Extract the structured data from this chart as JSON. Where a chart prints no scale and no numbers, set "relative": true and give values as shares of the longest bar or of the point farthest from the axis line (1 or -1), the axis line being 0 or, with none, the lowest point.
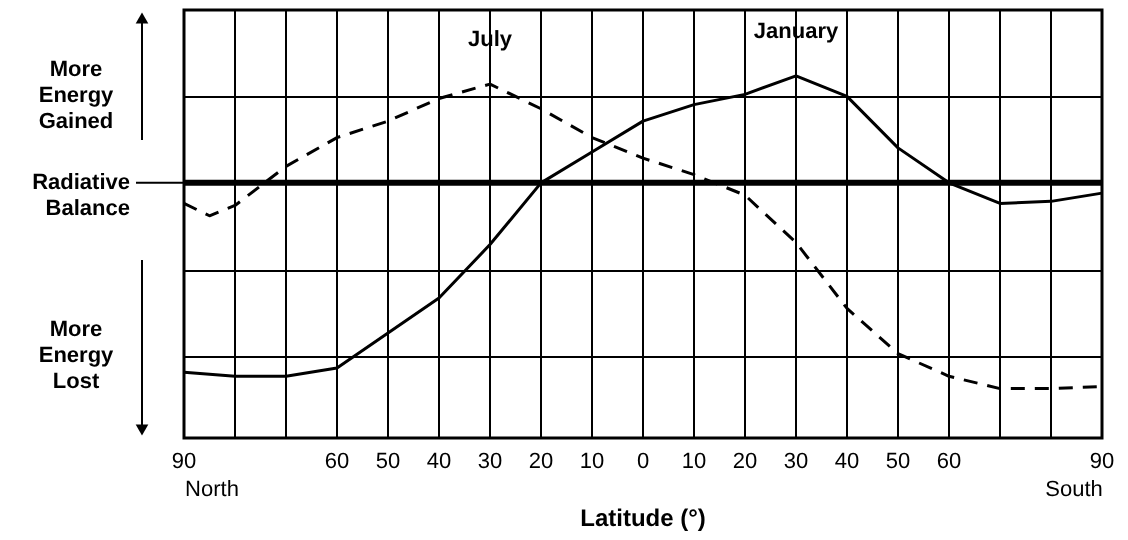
{
  "chart_data": {
    "type": "line",
    "relative": true,
    "xlabel": "Latitude (°)",
    "xlim": [
      90,
      -90
    ],
    "xticks": [
      90,
      {
        "value": 80,
        "label": null
      },
      {
        "value": 70,
        "label": null
      },
      60,
      50,
      40,
      30,
      20,
      10,
      0,
      {
        "value": -10,
        "label": "10"
      },
      {
        "value": -20,
        "label": "20"
      },
      {
        "value": -30,
        "label": "30"
      },
      {
        "value": -40,
        "label": "40"
      },
      {
        "value": -50,
        "label": "50"
      },
      {
        "value": -60,
        "label": "60"
      },
      {
        "value": -70,
        "label": null
      },
      {
        "value": -80,
        "label": null
      },
      {
        "value": -90,
        "label": "90"
      }
    ],
    "grid": true,
    "marker": "none",
    "series": [
      {
        "name": "January",
        "color": "#000000",
        "line_style": "solid",
        "x": [
          90,
          80,
          70,
          60,
          50,
          40,
          30,
          20,
          10,
          0,
          -10,
          -20,
          -30,
          -40,
          -50,
          -60,
          -70,
          -80,
          -90
        ],
        "values": [
          -0.92,
          -0.94,
          -0.94,
          -0.9,
          -0.73,
          -0.56,
          -0.3,
          0.0,
          0.15,
          0.3,
          0.38,
          0.43,
          0.52,
          0.42,
          0.17,
          0.0,
          -0.1,
          -0.09,
          -0.05
        ]
      },
      {
        "name": "July",
        "color": "#000000",
        "line_style": "dashed",
        "x": [
          90,
          85,
          80,
          70,
          60,
          50,
          40,
          30,
          20,
          10,
          0,
          -10,
          -20,
          -30,
          -40,
          -50,
          -60,
          -70,
          -80,
          -90
        ],
        "values": [
          -0.1,
          -0.16,
          -0.11,
          0.08,
          0.22,
          0.3,
          0.41,
          0.48,
          0.36,
          0.22,
          0.12,
          0.04,
          -0.06,
          -0.29,
          -0.61,
          -0.83,
          -0.94,
          -1.0,
          -1.0,
          -0.99
        ]
      }
    ],
    "ref_lines": [
      {
        "axis": "y",
        "value": 0,
        "label": "Radiative Balance",
        "color": "#000000"
      }
    ],
    "annotations": [
      "More Energy Gained",
      "More Energy Lost",
      "North",
      "South"
    ]
  }
}
